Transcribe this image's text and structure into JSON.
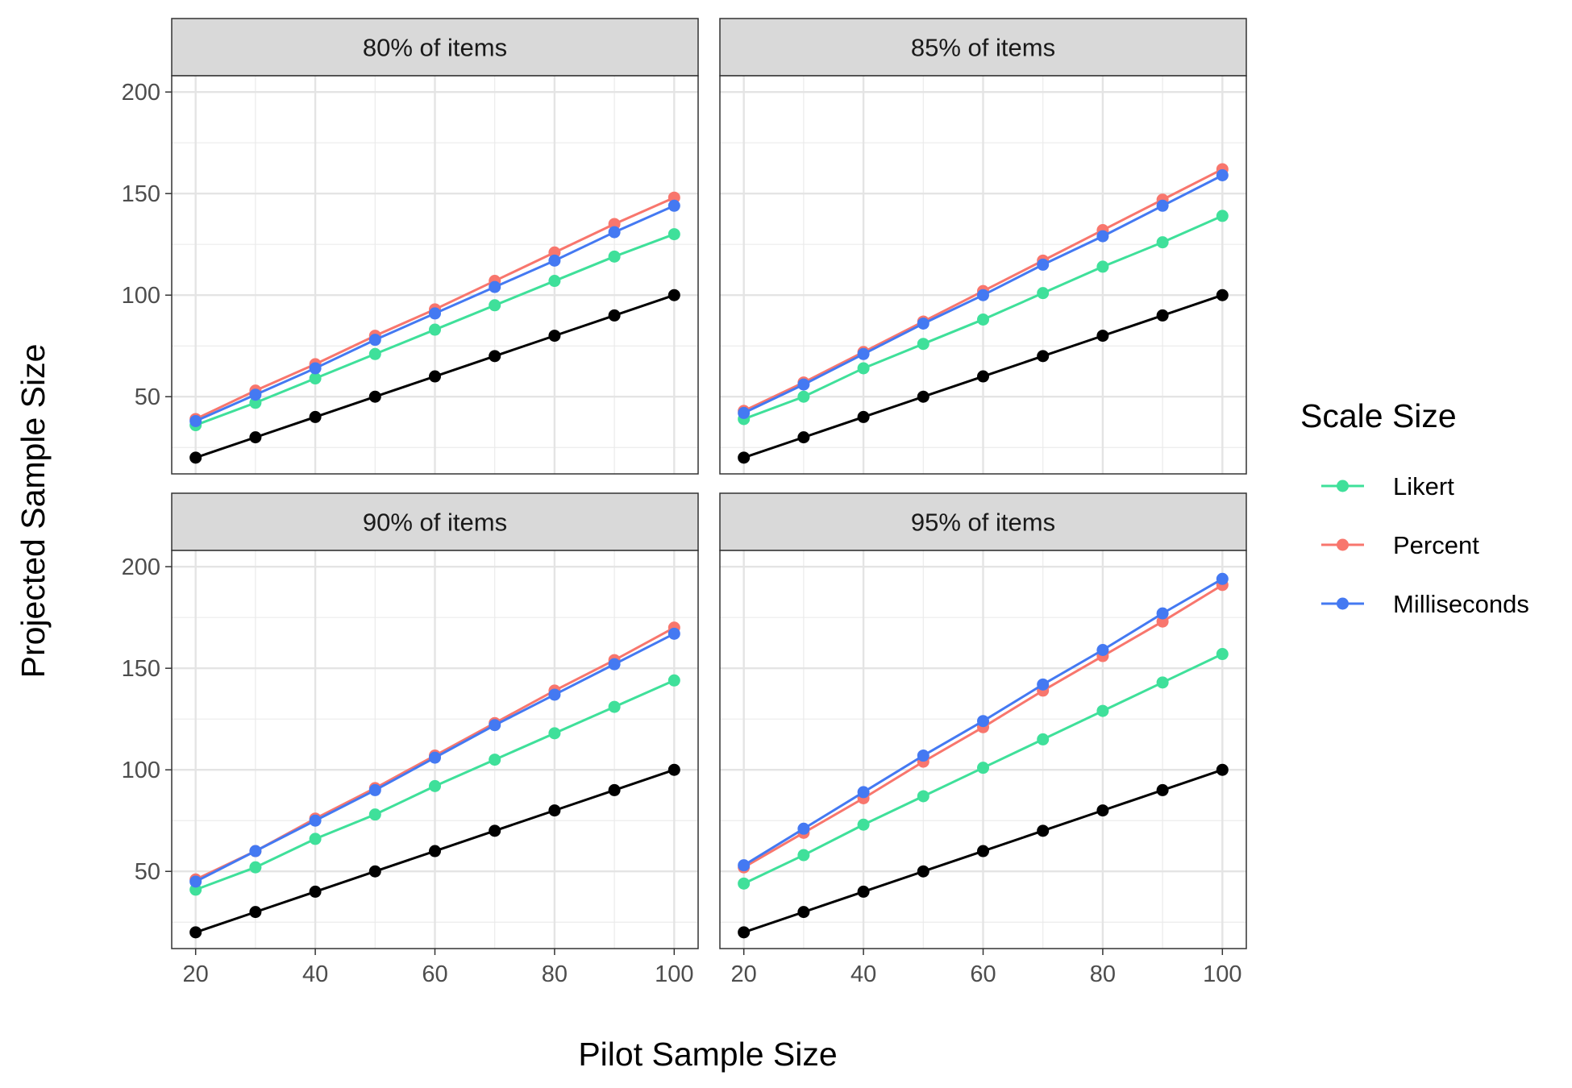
{
  "chart_data": {
    "type": "line",
    "xlabel": "Pilot Sample Size",
    "ylabel": "Projected Sample Size",
    "xlim": [
      16,
      104
    ],
    "ylim": [
      12,
      208
    ],
    "x_ticks": [
      20,
      40,
      60,
      80,
      100
    ],
    "y_ticks": [
      50,
      100,
      150,
      200
    ],
    "x": [
      20,
      30,
      40,
      50,
      60,
      70,
      80,
      90,
      100
    ],
    "grid": true,
    "legend": {
      "title": "Scale Size",
      "position": "right",
      "entries": [
        {
          "key": "likert",
          "label": "Likert",
          "color": "#3fe09a"
        },
        {
          "key": "percent",
          "label": "Percent",
          "color": "#f8766d"
        },
        {
          "key": "ms",
          "label": "Milliseconds",
          "color": "#4479f2"
        }
      ]
    },
    "reference_color": "#000000",
    "panels": [
      {
        "label": "80% of items",
        "series": {
          "reference": [
            20,
            30,
            40,
            50,
            60,
            70,
            80,
            90,
            100
          ],
          "likert": [
            36,
            47,
            59,
            71,
            83,
            95,
            107,
            119,
            130
          ],
          "percent": [
            39,
            53,
            66,
            80,
            93,
            107,
            121,
            135,
            148
          ],
          "ms": [
            38,
            51,
            64,
            78,
            91,
            104,
            117,
            131,
            144
          ]
        }
      },
      {
        "label": "85% of items",
        "series": {
          "reference": [
            20,
            30,
            40,
            50,
            60,
            70,
            80,
            90,
            100
          ],
          "likert": [
            39,
            50,
            64,
            76,
            88,
            101,
            114,
            126,
            139
          ],
          "percent": [
            43,
            57,
            72,
            87,
            102,
            117,
            132,
            147,
            162
          ],
          "ms": [
            42,
            56,
            71,
            86,
            100,
            115,
            129,
            144,
            159
          ]
        }
      },
      {
        "label": "90% of items",
        "series": {
          "reference": [
            20,
            30,
            40,
            50,
            60,
            70,
            80,
            90,
            100
          ],
          "likert": [
            41,
            52,
            66,
            78,
            92,
            105,
            118,
            131,
            144
          ],
          "percent": [
            46,
            60,
            76,
            91,
            107,
            123,
            139,
            154,
            170
          ],
          "ms": [
            45,
            60,
            75,
            90,
            106,
            122,
            137,
            152,
            167
          ]
        }
      },
      {
        "label": "95% of items",
        "series": {
          "reference": [
            20,
            30,
            40,
            50,
            60,
            70,
            80,
            90,
            100
          ],
          "likert": [
            44,
            58,
            73,
            87,
            101,
            115,
            129,
            143,
            157
          ],
          "percent": [
            52,
            69,
            86,
            104,
            121,
            139,
            156,
            173,
            191
          ],
          "ms": [
            53,
            71,
            89,
            107,
            124,
            142,
            159,
            177,
            194
          ]
        }
      }
    ]
  }
}
